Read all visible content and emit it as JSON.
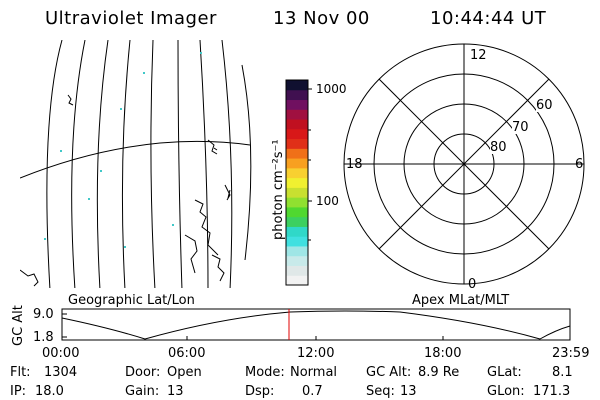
{
  "header": {
    "instrument": "Ultraviolet Imager",
    "date": "13 Nov 00",
    "time": "10:44:44 UT"
  },
  "colorbar": {
    "unit_label": "photon cm⁻²s⁻¹",
    "tick_labels": [
      "1000",
      "100"
    ],
    "colors": [
      "#f2f2f2",
      "#e0e8e8",
      "#c8eaea",
      "#9fe6e6",
      "#40e0e0",
      "#30d8c8",
      "#3cd060",
      "#50d830",
      "#90e030",
      "#c8e030",
      "#f0f030",
      "#f8d030",
      "#f8a020",
      "#f07018",
      "#e03018",
      "#d81818",
      "#c01020",
      "#a01040",
      "#701060",
      "#401050",
      "#101030"
    ]
  },
  "left_panel": {
    "label": "Geographic Lat/Lon"
  },
  "polar_panel": {
    "label": "Apex MLat/MLT",
    "mlt_labels": {
      "top": "12",
      "left": "18",
      "right": "6",
      "bottom": "0"
    },
    "mlat_labels": [
      "60",
      "70",
      "80"
    ]
  },
  "orbit_plot": {
    "ylabel": "GC Alt",
    "y_ticks": [
      "9.0",
      "1.8"
    ],
    "x_ticks": [
      "00:00",
      "06:00",
      "12:00",
      "18:00",
      "23:59"
    ],
    "marker_color": "#e00000"
  },
  "info": {
    "flt": {
      "label": "Flt:",
      "value": "1304"
    },
    "ip": {
      "label": "IP:",
      "value": "18.0"
    },
    "door": {
      "label": "Door:",
      "value": "Open"
    },
    "gain": {
      "label": "Gain:",
      "value": "13"
    },
    "mode": {
      "label": "Mode:",
      "value": "Normal"
    },
    "dsp": {
      "label": "Dsp:",
      "value": "0.7"
    },
    "gcalt": {
      "label": "GC Alt:",
      "value": "8.9 Re"
    },
    "seq": {
      "label": "Seq:",
      "value": "13"
    },
    "glat": {
      "label": "GLat:",
      "value": "8.1"
    },
    "glon": {
      "label": "GLon:",
      "value": "171.3"
    }
  }
}
